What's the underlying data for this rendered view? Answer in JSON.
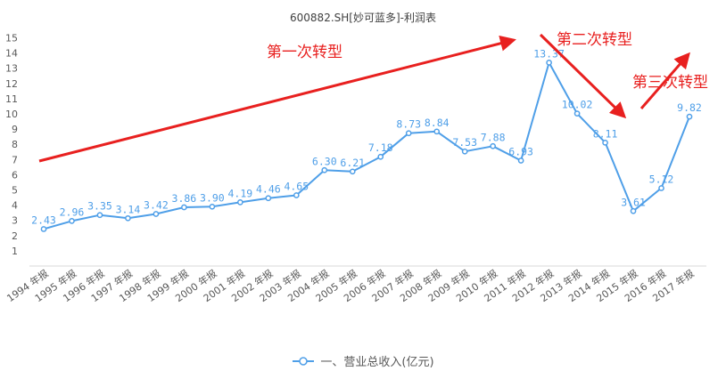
{
  "colors": {
    "series": "#4f9fe8",
    "annotation": "#e8201f",
    "axis_text": "#595959",
    "grid": "#d9d9d9"
  },
  "chart_data": {
    "type": "line",
    "title": "600882.SH[妙可蓝多]-利润表",
    "categories": [
      "1994 年报",
      "1995 年报",
      "1996 年报",
      "1997 年报",
      "1998 年报",
      "1999 年报",
      "2000 年报",
      "2001 年报",
      "2002 年报",
      "2003 年报",
      "2004 年报",
      "2005 年报",
      "2006 年报",
      "2007 年报",
      "2008 年报",
      "2009 年报",
      "2010 年报",
      "2011 年报",
      "2012 年报",
      "2013 年报",
      "2014 年报",
      "2015 年报",
      "2016 年报",
      "2017 年报"
    ],
    "series": [
      {
        "name": "一、营业总收入(亿元)",
        "values": [
          2.43,
          2.96,
          3.35,
          3.14,
          3.42,
          3.86,
          3.9,
          4.19,
          4.46,
          4.65,
          6.3,
          6.21,
          7.18,
          8.73,
          8.84,
          7.53,
          7.88,
          6.93,
          13.37,
          10.02,
          8.11,
          3.61,
          5.12,
          9.82
        ],
        "labels": [
          "2.43",
          "2.96",
          "3.35",
          "3.14",
          "3.42",
          "3.86",
          "3.90",
          "4.19",
          "4.46",
          "4.65",
          "6.30",
          "6.21",
          "7.18",
          "8.73",
          "8.84",
          "7.53",
          "7.88",
          "6.93",
          "13.37",
          "10.02",
          "8.11",
          "3.61",
          "5.12",
          "9.82"
        ]
      }
    ],
    "yticks": [
      1,
      2,
      3,
      4,
      5,
      6,
      7,
      8,
      9,
      10,
      11,
      12,
      13,
      14,
      15
    ],
    "ylim": [
      1,
      15
    ],
    "grid": false,
    "legend_position": "bottom",
    "annotations": [
      "第一次转型",
      "第二次转型",
      "第三次转型"
    ]
  }
}
